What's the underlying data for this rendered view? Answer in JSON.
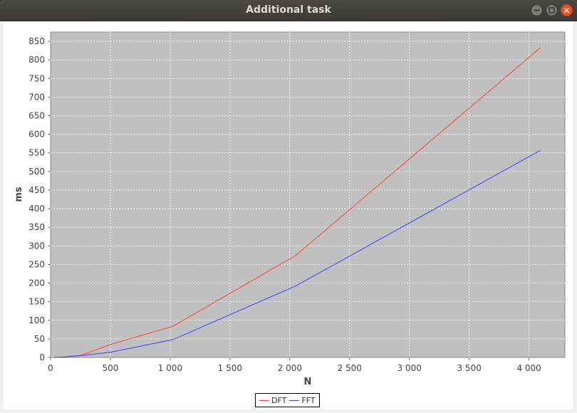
{
  "window": {
    "title": "Additional task",
    "buttons": {
      "minimize_icon": "minimize-icon",
      "maximize_icon": "maximize-icon",
      "close_icon": "close-icon"
    }
  },
  "chart_data": {
    "type": "line",
    "title": "",
    "xlabel": "N",
    "ylabel": "ms",
    "xlim": [
      0,
      4300
    ],
    "ylim": [
      0,
      875
    ],
    "xticks": [
      0,
      500,
      1000,
      1500,
      2000,
      2500,
      3000,
      3500,
      4000
    ],
    "xtick_labels": [
      "0",
      "500",
      "1 000",
      "1 500",
      "2 000",
      "2 500",
      "3 000",
      "3 500",
      "4 000"
    ],
    "yticks": [
      0,
      50,
      100,
      150,
      200,
      250,
      300,
      350,
      400,
      450,
      500,
      550,
      600,
      650,
      700,
      750,
      800,
      850
    ],
    "ytick_labels": [
      "0",
      "50",
      "100",
      "150",
      "200",
      "250",
      "300",
      "350",
      "400",
      "450",
      "500",
      "550",
      "600",
      "650",
      "700",
      "750",
      "800",
      "850"
    ],
    "grid": true,
    "background": "#c0c0c0",
    "legend_position": "bottom-center",
    "x": [
      32,
      64,
      128,
      256,
      512,
      1024,
      2048,
      4096
    ],
    "series": [
      {
        "name": "DFT",
        "color": "#ff4040",
        "values": [
          0.1,
          0.5,
          2,
          6,
          36,
          84,
          274,
          833
        ]
      },
      {
        "name": "FFT",
        "color": "#4040ff",
        "values": [
          0.1,
          0.4,
          1.5,
          5,
          15,
          48,
          192,
          557
        ]
      }
    ]
  }
}
